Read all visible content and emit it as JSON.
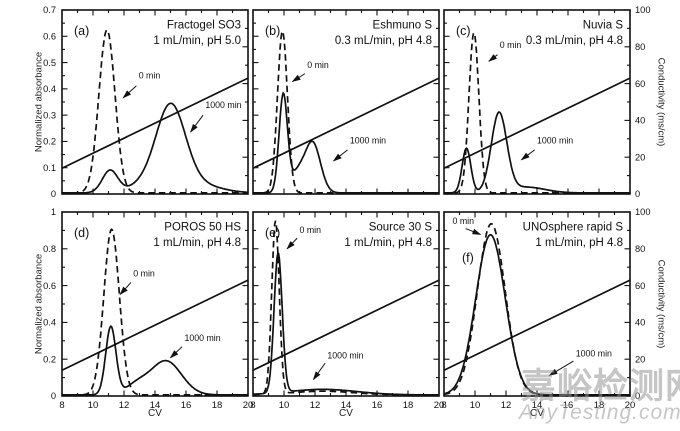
{
  "figure": {
    "watermark": {
      "cjk": "嘉峪检测网",
      "site": "AnyTesting.com"
    },
    "colors": {
      "ink": "#111111",
      "background": "#ffffff",
      "watermark": "#9b9b9b"
    }
  },
  "chart_data": {
    "type": "line",
    "xlabel": "CV",
    "ylabel_left": "Normalized absorbance",
    "ylabel_right": "Conductivity (ms/cm)",
    "xlim": [
      8,
      20
    ],
    "x_major_ticks": [
      8,
      10,
      12,
      14,
      16,
      18,
      20
    ],
    "right_axis": {
      "ylim": [
        0,
        100
      ],
      "ticks": [
        0,
        20,
        40,
        60,
        80,
        100
      ]
    },
    "gradient_line": {
      "x": [
        8,
        20
      ],
      "conductivity_ms_cm": [
        14,
        63
      ]
    },
    "rows": [
      {
        "ylim": [
          0,
          0.7
        ],
        "yticks": [
          0,
          0.1,
          0.2,
          0.3,
          0.4,
          0.5,
          0.6,
          0.7
        ]
      },
      {
        "ylim": [
          0,
          1
        ],
        "yticks": [
          0,
          0.2,
          0.4,
          0.6,
          0.8,
          1
        ]
      }
    ],
    "panels": [
      {
        "tag": "(a)",
        "title": "Fractogel SO3",
        "conditions": "1 mL/min, pH 5.0",
        "row": 0,
        "col": 0,
        "series": [
          {
            "name": "0 min",
            "style": "dashed",
            "peaks": [
              [
                10.9,
                0.62,
                0.52
              ]
            ]
          },
          {
            "name": "1000 min",
            "style": "solid",
            "peaks": [
              [
                11.1,
                0.085,
                0.5
              ],
              [
                15.0,
                0.325,
                0.95
              ],
              [
                13.1,
                0.025,
                0.9
              ],
              [
                16.8,
                0.03,
                1.4
              ]
            ]
          }
        ],
        "annotations": [
          {
            "text": "0 min",
            "x": 12.95,
            "y": 0.44,
            "arrow": [
              12.8,
              0.412,
              11.95,
              0.366
            ]
          },
          {
            "text": "1000 min",
            "x": 17.25,
            "y": 0.327,
            "arrow": [
              17.1,
              0.3,
              16.3,
              0.236
            ]
          }
        ]
      },
      {
        "tag": "(b)",
        "title": "Eshmuno S",
        "conditions": "0.3 mL/min, pH 4.8",
        "row": 0,
        "col": 1,
        "series": [
          {
            "name": "0 min",
            "style": "dashed",
            "peaks": [
              [
                9.9,
                0.615,
                0.32
              ]
            ]
          },
          {
            "name": "1000 min",
            "style": "solid",
            "peaks": [
              [
                9.95,
                0.37,
                0.27
              ],
              [
                11.85,
                0.19,
                0.5
              ],
              [
                10.85,
                0.07,
                0.45
              ]
            ]
          }
        ],
        "annotations": [
          {
            "text": "0 min",
            "x": 11.5,
            "y": 0.48,
            "arrow": [
              11.35,
              0.458,
              10.55,
              0.428
            ]
          },
          {
            "text": "1000 min",
            "x": 14.25,
            "y": 0.192,
            "arrow": [
              14.1,
              0.168,
              13.2,
              0.126
            ]
          }
        ]
      },
      {
        "tag": "(c)",
        "title": "Nuvia S",
        "conditions": "0.3 mL/min, pH 4.8",
        "row": 0,
        "col": 2,
        "series": [
          {
            "name": "0 min",
            "style": "dashed",
            "peaks": [
              [
                9.93,
                0.61,
                0.32
              ]
            ]
          },
          {
            "name": "1000 min",
            "style": "solid",
            "peaks": [
              [
                9.45,
                0.17,
                0.28
              ],
              [
                11.55,
                0.3,
                0.5
              ],
              [
                13.3,
                0.022,
                1.2
              ]
            ]
          }
        ],
        "annotations": [
          {
            "text": "0 min",
            "x": 11.6,
            "y": 0.555,
            "arrow": [
              11.45,
              0.53,
              10.9,
              0.505
            ]
          },
          {
            "text": "1000 min",
            "x": 14.0,
            "y": 0.192,
            "arrow": [
              13.85,
              0.168,
              13.0,
              0.13
            ]
          }
        ]
      },
      {
        "tag": "(d)",
        "title": "POROS 50 HS",
        "conditions": "1 mL/min, pH 4.8",
        "row": 1,
        "col": 0,
        "series": [
          {
            "name": "0 min",
            "style": "dashed",
            "peaks": [
              [
                11.2,
                0.9,
                0.5
              ]
            ]
          },
          {
            "name": "1000 min",
            "style": "solid",
            "peaks": [
              [
                11.15,
                0.37,
                0.33
              ],
              [
                14.7,
                0.185,
                1.0
              ],
              [
                12.8,
                0.05,
                0.7
              ]
            ]
          }
        ],
        "annotations": [
          {
            "text": "0 min",
            "x": 12.6,
            "y": 0.65,
            "arrow": [
              12.45,
              0.617,
              11.75,
              0.552
            ]
          },
          {
            "text": "1000 min",
            "x": 15.9,
            "y": 0.3,
            "arrow": [
              15.75,
              0.268,
              15.0,
              0.208
            ]
          }
        ]
      },
      {
        "tag": "(e)",
        "title": "Source 30 S",
        "conditions": "1 mL/min, pH 4.8",
        "row": 1,
        "col": 1,
        "series": [
          {
            "name": "0 min",
            "style": "dashed",
            "peaks": [
              [
                9.45,
                0.94,
                0.24
              ],
              [
                12.5,
                0.02,
                2.0
              ]
            ]
          },
          {
            "name": "1000 min",
            "style": "solid",
            "peaks": [
              [
                9.62,
                0.76,
                0.26
              ],
              [
                12.5,
                0.03,
                2.2
              ]
            ]
          }
        ],
        "annotations": [
          {
            "text": "0 min",
            "x": 11.0,
            "y": 0.885,
            "arrow": [
              10.85,
              0.858,
              10.2,
              0.8
            ]
          },
          {
            "text": "1000 min",
            "x": 12.8,
            "y": 0.205,
            "arrow": [
              12.65,
              0.178,
              11.9,
              0.09
            ]
          }
        ]
      },
      {
        "tag": "(f)",
        "title": "UNOsphere rapid S",
        "conditions": "1 mL/min, pH 4.8",
        "row": 1,
        "col": 2,
        "tag_offset": [
          18,
          50
        ],
        "series": [
          {
            "name": "0 min",
            "style": "dashed",
            "peaks": [
              [
                11.05,
                0.93,
                0.9
              ]
            ]
          },
          {
            "name": "1000 min",
            "style": "solid",
            "peaks": [
              [
                11.0,
                0.87,
                0.95
              ]
            ]
          }
        ],
        "annotations": [
          {
            "text": "0 min",
            "x": 8.55,
            "y": 0.935,
            "arrow": [
              9.4,
              0.91,
              10.35,
              0.878
            ]
          },
          {
            "text": "1000 min",
            "x": 16.5,
            "y": 0.215,
            "arrow": [
              16.35,
              0.19,
              14.8,
              0.112
            ]
          }
        ]
      }
    ]
  }
}
